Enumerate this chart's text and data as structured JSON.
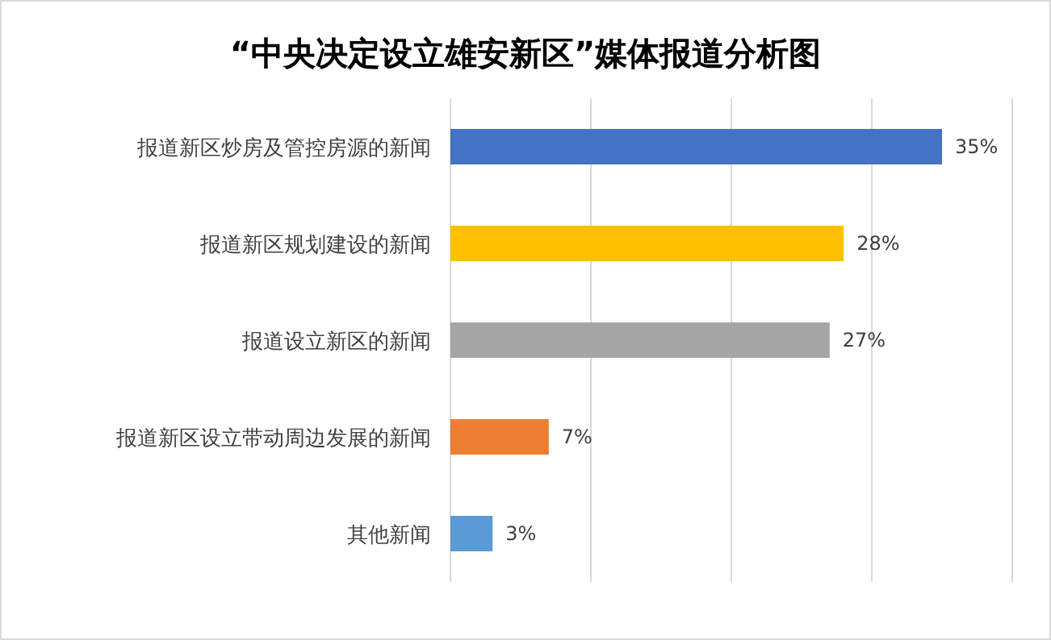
{
  "chart_data": {
    "type": "bar",
    "orientation": "horizontal",
    "title": "“中央决定设立雄安新区”媒体报道分析图",
    "categories": [
      "报道新区炒房及管控房源的新闻",
      "报道新区规划建设的新闻",
      "报道设立新区的新闻",
      "报道新区设立带动周边发展的新闻",
      "其他新闻"
    ],
    "values": [
      35,
      28,
      27,
      7,
      3
    ],
    "colors": [
      "#4472c4",
      "#ffc000",
      "#a5a5a5",
      "#ed7d31",
      "#5b9bd5"
    ],
    "value_labels": [
      "35%",
      "28%",
      "27%",
      "7%",
      "3%"
    ],
    "xlim": [
      0,
      40
    ],
    "xticks": [
      {
        "value": 0,
        "label": null
      },
      {
        "value": 10,
        "label": null
      },
      {
        "value": 20,
        "label": null
      },
      {
        "value": 30,
        "label": null
      },
      {
        "value": 40,
        "label": null
      }
    ],
    "grid": "x",
    "tick_labels": "y"
  }
}
